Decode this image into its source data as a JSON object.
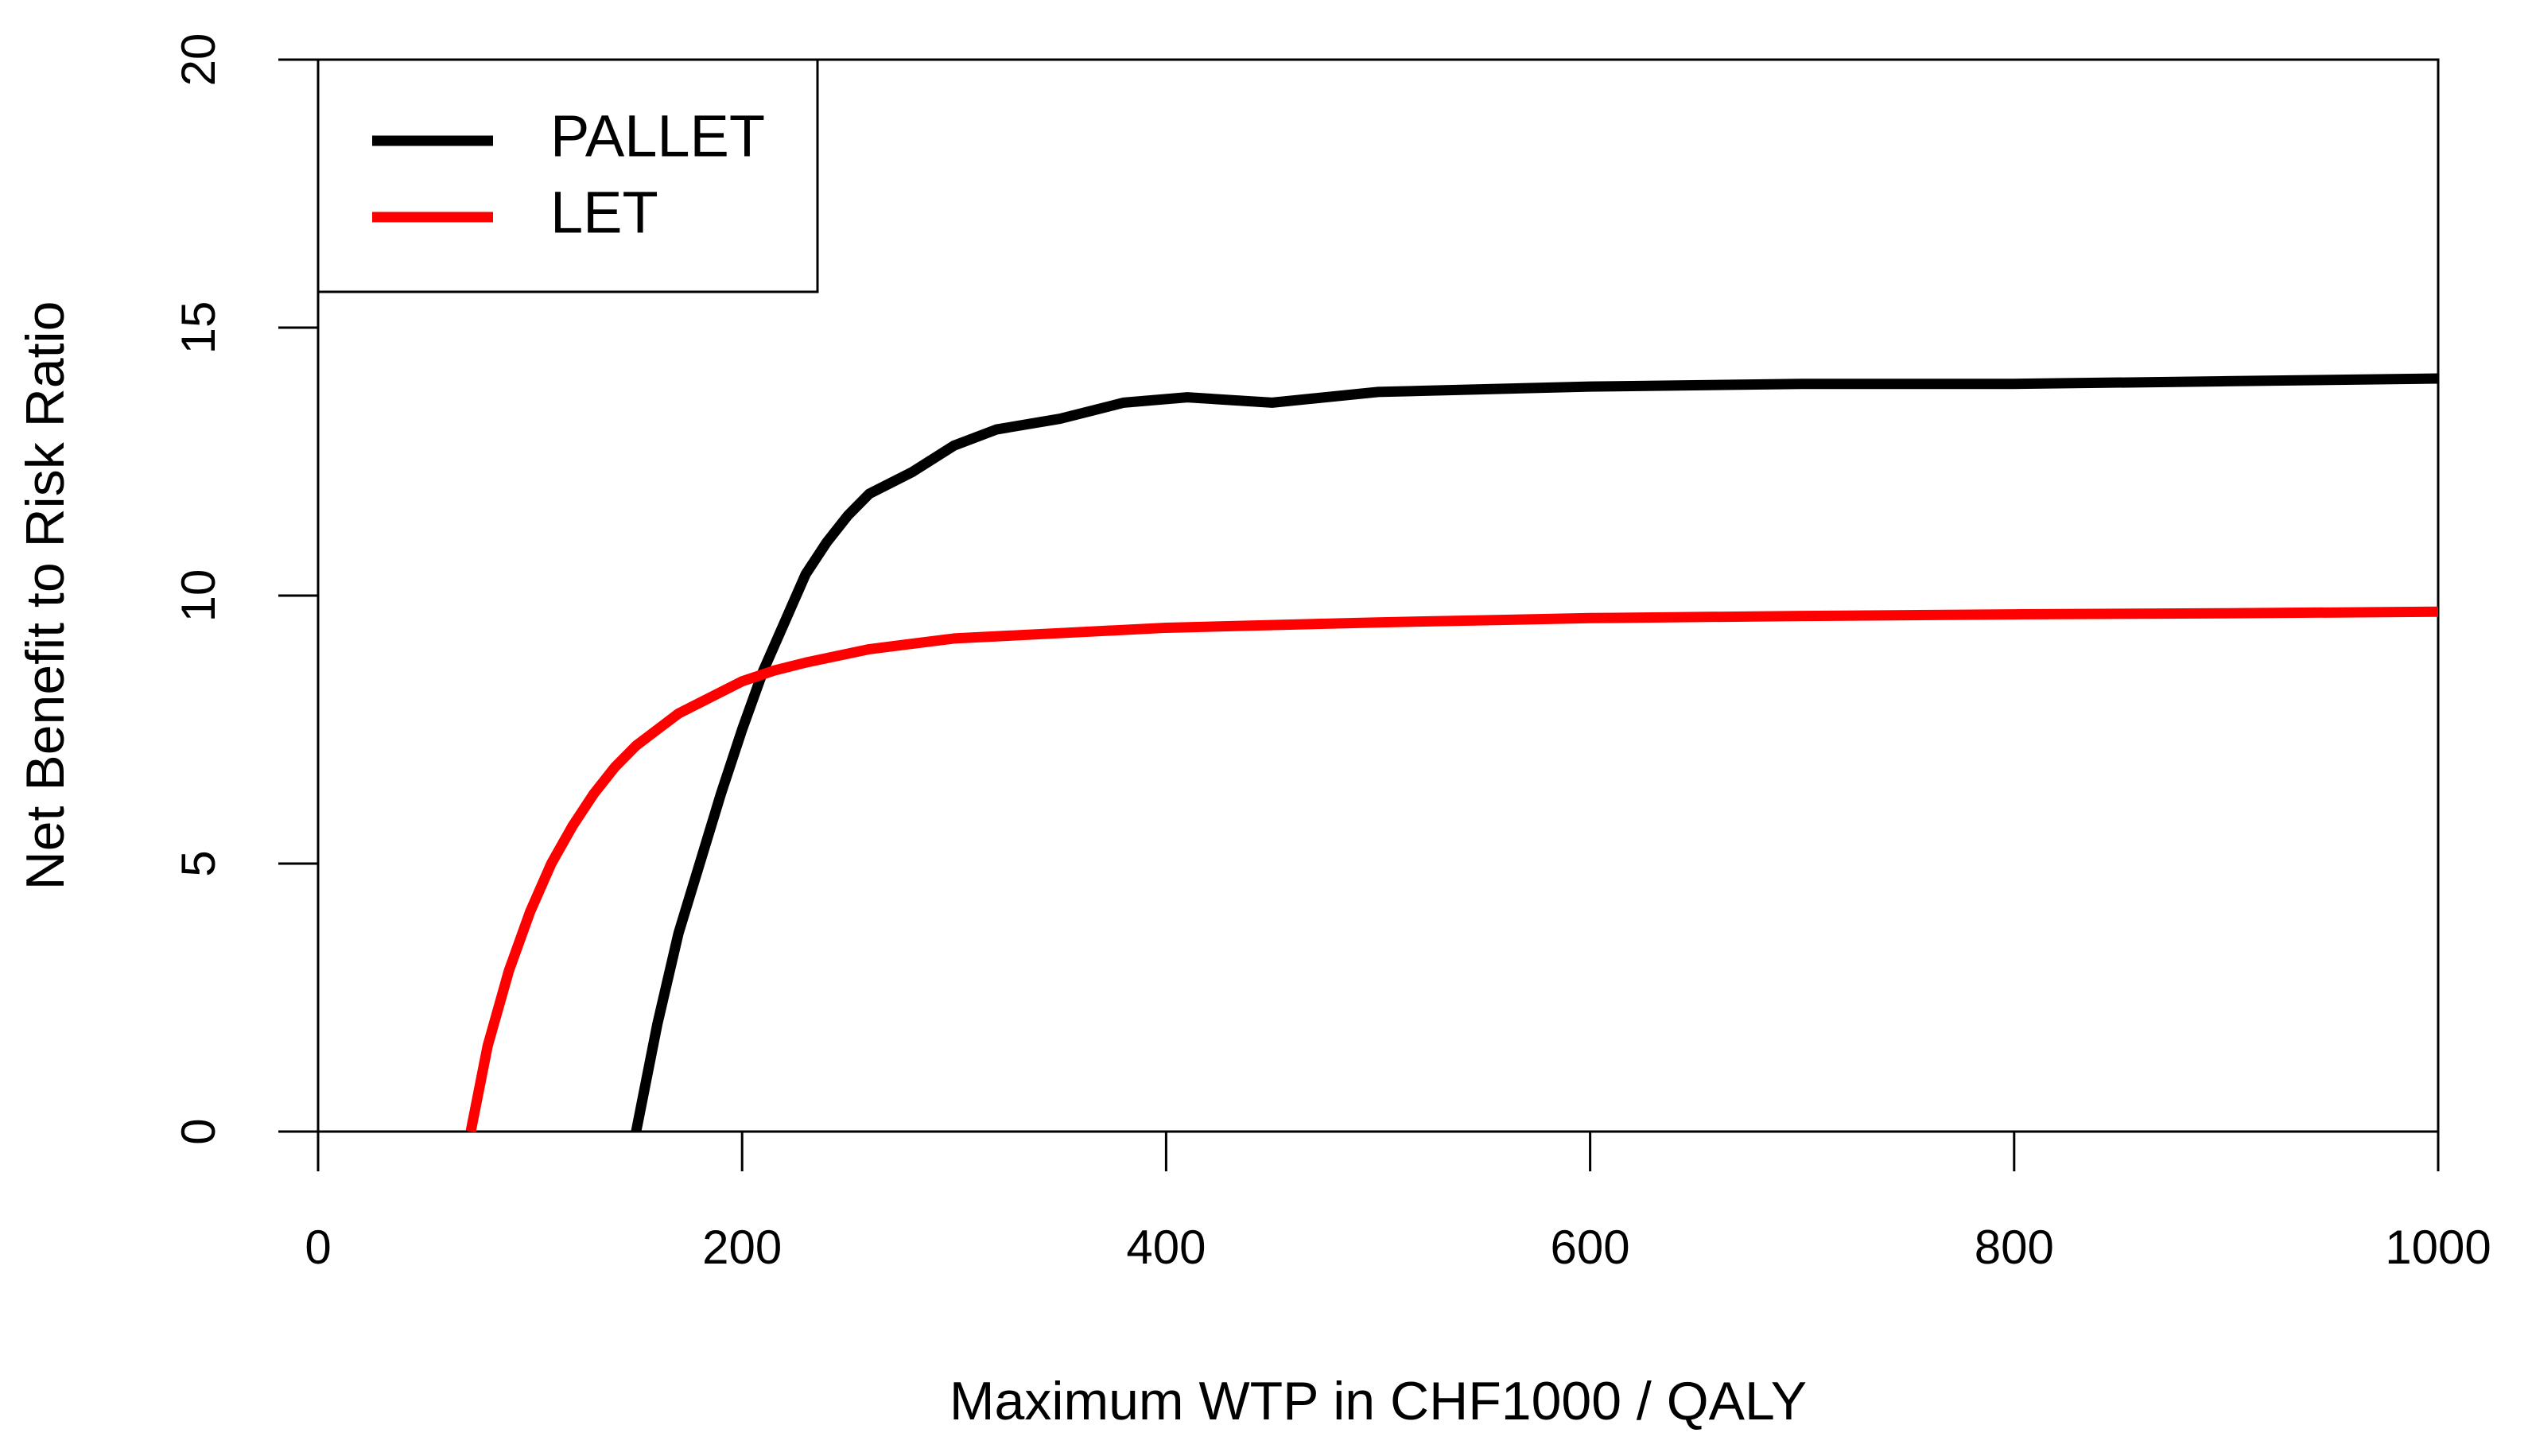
{
  "chart_data": {
    "type": "line",
    "x_label": "Maximum WTP in CHF1000 / QALY",
    "y_label": "Net Benefit to Risk Ratio",
    "xlim": [
      0,
      1000
    ],
    "xticks": [
      0,
      200,
      400,
      600,
      800,
      1000
    ],
    "ylim": [
      0,
      20
    ],
    "yticks": [
      0,
      5,
      10,
      15,
      20
    ],
    "legend": "top-left",
    "series": [
      {
        "name": "PALLET",
        "color": "#000000",
        "x": [
          150,
          160,
          170,
          180,
          190,
          200,
          210,
          220,
          230,
          240,
          250,
          260,
          280,
          300,
          320,
          350,
          380,
          410,
          450,
          500,
          550,
          600,
          700,
          800,
          900,
          1000
        ],
        "values": [
          0,
          2,
          3.7,
          5,
          6.3,
          7.5,
          8.6,
          9.5,
          10.4,
          11,
          11.5,
          11.9,
          12.3,
          12.8,
          13.1,
          13.3,
          13.6,
          13.7,
          13.6,
          13.8,
          13.85,
          13.9,
          13.95,
          13.95,
          14.0,
          14.05
        ]
      },
      {
        "name": "LET",
        "color": "#ff0000",
        "x": [
          72,
          80,
          90,
          100,
          110,
          120,
          130,
          140,
          150,
          160,
          170,
          185,
          200,
          215,
          230,
          260,
          300,
          350,
          400,
          500,
          600,
          700,
          800,
          900,
          1000
        ],
        "values": [
          0,
          1.6,
          3,
          4.1,
          5,
          5.7,
          6.3,
          6.8,
          7.2,
          7.5,
          7.8,
          8.1,
          8.4,
          8.6,
          8.75,
          9.0,
          9.2,
          9.3,
          9.4,
          9.5,
          9.58,
          9.62,
          9.65,
          9.67,
          9.7
        ]
      }
    ]
  }
}
